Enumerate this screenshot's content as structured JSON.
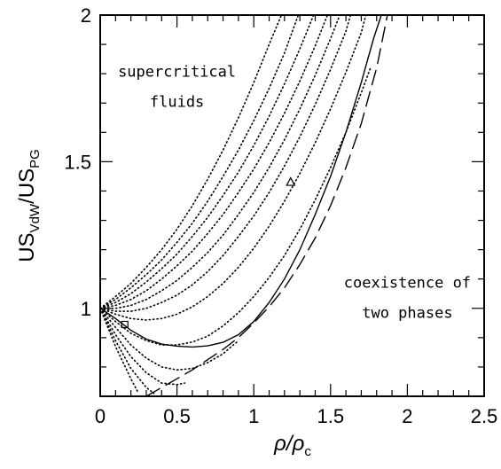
{
  "chart_data": {
    "type": "line",
    "title": "",
    "xlabel": {
      "base": "ρ/ρ",
      "sub": "c"
    },
    "ylabel": {
      "parts": [
        {
          "t": "US",
          "sub": "VdW"
        },
        {
          "t": "/US",
          "sub": "PG"
        }
      ]
    },
    "xlim": [
      0,
      2.5
    ],
    "ylim": [
      0.7,
      2.0
    ],
    "x_ticks": [
      0,
      0.5,
      1,
      1.5,
      2,
      2.5
    ],
    "x_tick_labels": [
      "0",
      "0.5",
      "1",
      "1.5",
      "2",
      "2.5"
    ],
    "y_ticks": [
      1,
      1.5,
      2
    ],
    "y_tick_labels": [
      "1",
      "1.5",
      "2"
    ],
    "annotations": [
      {
        "line1": "supercritical",
        "line2": "fluids",
        "x": 0.5,
        "y": 1.79
      },
      {
        "line1": "coexistence of",
        "line2": "two phases",
        "x": 2.0,
        "y": 1.07
      }
    ],
    "markers": [
      {
        "shape": "triangle",
        "x": 1.24,
        "y": 1.43
      },
      {
        "shape": "square",
        "x": 0.16,
        "y": 0.945
      }
    ],
    "series": [
      {
        "style": "solid",
        "points": [
          [
            0,
            1.0
          ],
          [
            0.1,
            0.965
          ],
          [
            0.2,
            0.925
          ],
          [
            0.3,
            0.895
          ],
          [
            0.4,
            0.878
          ],
          [
            0.5,
            0.871
          ],
          [
            0.6,
            0.868
          ],
          [
            0.7,
            0.872
          ],
          [
            0.8,
            0.884
          ],
          [
            0.9,
            0.91
          ],
          [
            1.0,
            0.955
          ],
          [
            1.1,
            1.02
          ],
          [
            1.2,
            1.1
          ],
          [
            1.3,
            1.2
          ],
          [
            1.4,
            1.32
          ],
          [
            1.5,
            1.45
          ],
          [
            1.6,
            1.6
          ],
          [
            1.7,
            1.77
          ],
          [
            1.78,
            1.92
          ],
          [
            1.83,
            2.0
          ]
        ]
      },
      {
        "style": "dashed",
        "points": [
          [
            0.3,
            0.7
          ],
          [
            0.4,
            0.73
          ],
          [
            0.5,
            0.76
          ],
          [
            0.6,
            0.79
          ],
          [
            0.7,
            0.825
          ],
          [
            0.8,
            0.86
          ],
          [
            0.9,
            0.9
          ],
          [
            1.0,
            0.95
          ],
          [
            1.1,
            1.005
          ],
          [
            1.2,
            1.07
          ],
          [
            1.3,
            1.15
          ],
          [
            1.4,
            1.24
          ],
          [
            1.5,
            1.35
          ],
          [
            1.6,
            1.48
          ],
          [
            1.7,
            1.63
          ],
          [
            1.8,
            1.82
          ],
          [
            1.87,
            2.0
          ]
        ]
      },
      {
        "style": "dotted",
        "points": [
          [
            0,
            1.0
          ],
          [
            0.1,
            1.04
          ],
          [
            0.2,
            1.085
          ],
          [
            0.3,
            1.14
          ],
          [
            0.4,
            1.2
          ],
          [
            0.5,
            1.27
          ],
          [
            0.6,
            1.35
          ],
          [
            0.7,
            1.44
          ],
          [
            0.8,
            1.54
          ],
          [
            0.9,
            1.65
          ],
          [
            1.0,
            1.77
          ],
          [
            1.1,
            1.9
          ],
          [
            1.18,
            2.0
          ]
        ]
      },
      {
        "style": "dotted",
        "points": [
          [
            0,
            1.0
          ],
          [
            0.1,
            1.03
          ],
          [
            0.2,
            1.07
          ],
          [
            0.3,
            1.115
          ],
          [
            0.4,
            1.165
          ],
          [
            0.5,
            1.225
          ],
          [
            0.6,
            1.29
          ],
          [
            0.7,
            1.365
          ],
          [
            0.8,
            1.45
          ],
          [
            0.9,
            1.54
          ],
          [
            1.0,
            1.64
          ],
          [
            1.1,
            1.75
          ],
          [
            1.2,
            1.87
          ],
          [
            1.29,
            2.0
          ]
        ]
      },
      {
        "style": "dotted",
        "points": [
          [
            0,
            1.0
          ],
          [
            0.1,
            1.02
          ],
          [
            0.2,
            1.05
          ],
          [
            0.3,
            1.09
          ],
          [
            0.4,
            1.135
          ],
          [
            0.5,
            1.185
          ],
          [
            0.6,
            1.245
          ],
          [
            0.7,
            1.31
          ],
          [
            0.8,
            1.385
          ],
          [
            0.9,
            1.465
          ],
          [
            1.0,
            1.555
          ],
          [
            1.1,
            1.655
          ],
          [
            1.2,
            1.765
          ],
          [
            1.3,
            1.885
          ],
          [
            1.39,
            2.0
          ]
        ]
      },
      {
        "style": "dotted",
        "points": [
          [
            0,
            1.0
          ],
          [
            0.1,
            1.01
          ],
          [
            0.2,
            1.03
          ],
          [
            0.3,
            1.06
          ],
          [
            0.4,
            1.1
          ],
          [
            0.5,
            1.145
          ],
          [
            0.6,
            1.195
          ],
          [
            0.7,
            1.255
          ],
          [
            0.8,
            1.32
          ],
          [
            0.9,
            1.395
          ],
          [
            1.0,
            1.475
          ],
          [
            1.1,
            1.565
          ],
          [
            1.2,
            1.665
          ],
          [
            1.3,
            1.775
          ],
          [
            1.4,
            1.895
          ],
          [
            1.48,
            2.0
          ]
        ]
      },
      {
        "style": "dotted",
        "points": [
          [
            0,
            1.0
          ],
          [
            0.1,
            1.0
          ],
          [
            0.2,
            1.01
          ],
          [
            0.3,
            1.03
          ],
          [
            0.4,
            1.06
          ],
          [
            0.5,
            1.095
          ],
          [
            0.6,
            1.14
          ],
          [
            0.7,
            1.19
          ],
          [
            0.8,
            1.25
          ],
          [
            0.9,
            1.32
          ],
          [
            1.0,
            1.395
          ],
          [
            1.1,
            1.48
          ],
          [
            1.2,
            1.575
          ],
          [
            1.3,
            1.68
          ],
          [
            1.4,
            1.795
          ],
          [
            1.5,
            1.92
          ],
          [
            1.56,
            2.0
          ]
        ]
      },
      {
        "style": "dotted",
        "points": [
          [
            0,
            1.0
          ],
          [
            0.1,
            0.99
          ],
          [
            0.2,
            0.99
          ],
          [
            0.3,
            1.0
          ],
          [
            0.4,
            1.02
          ],
          [
            0.5,
            1.045
          ],
          [
            0.6,
            1.08
          ],
          [
            0.7,
            1.125
          ],
          [
            0.8,
            1.18
          ],
          [
            0.9,
            1.245
          ],
          [
            1.0,
            1.315
          ],
          [
            1.1,
            1.395
          ],
          [
            1.2,
            1.485
          ],
          [
            1.3,
            1.585
          ],
          [
            1.4,
            1.695
          ],
          [
            1.5,
            1.815
          ],
          [
            1.6,
            1.945
          ],
          [
            1.63,
            2.0
          ]
        ]
      },
      {
        "style": "dotted",
        "points": [
          [
            0,
            1.0
          ],
          [
            0.1,
            0.98
          ],
          [
            0.2,
            0.965
          ],
          [
            0.3,
            0.96
          ],
          [
            0.4,
            0.965
          ],
          [
            0.5,
            0.98
          ],
          [
            0.6,
            1.005
          ],
          [
            0.7,
            1.04
          ],
          [
            0.8,
            1.085
          ],
          [
            0.9,
            1.14
          ],
          [
            1.0,
            1.205
          ],
          [
            1.1,
            1.28
          ],
          [
            1.2,
            1.365
          ],
          [
            1.3,
            1.46
          ],
          [
            1.4,
            1.565
          ],
          [
            1.5,
            1.68
          ],
          [
            1.6,
            1.805
          ],
          [
            1.7,
            1.94
          ],
          [
            1.73,
            2.0
          ]
        ]
      },
      {
        "style": "dotted",
        "points": [
          [
            0,
            1.0
          ],
          [
            0.1,
            0.955
          ],
          [
            0.2,
            0.915
          ],
          [
            0.3,
            0.89
          ],
          [
            0.4,
            0.875
          ],
          [
            0.5,
            0.875
          ],
          [
            0.6,
            0.885
          ],
          [
            0.7,
            0.905
          ],
          [
            0.8,
            0.94
          ],
          [
            0.9,
            0.985
          ],
          [
            1.0,
            1.04
          ],
          [
            1.1,
            1.105
          ],
          [
            1.2,
            1.18
          ],
          [
            1.3,
            1.27
          ],
          [
            1.4,
            1.37
          ],
          [
            1.5,
            1.48
          ],
          [
            1.6,
            1.6
          ],
          [
            1.7,
            1.735
          ],
          [
            1.76,
            1.82
          ]
        ]
      },
      {
        "style": "dotted",
        "points": [
          [
            0,
            1.0
          ],
          [
            0.1,
            0.935
          ],
          [
            0.2,
            0.875
          ],
          [
            0.3,
            0.83
          ],
          [
            0.4,
            0.8
          ],
          [
            0.5,
            0.79
          ],
          [
            0.6,
            0.795
          ],
          [
            0.7,
            0.815
          ],
          [
            0.8,
            0.845
          ],
          [
            0.9,
            0.89
          ]
        ]
      },
      {
        "style": "dotted",
        "points": [
          [
            0,
            1.0
          ],
          [
            0.1,
            0.91
          ],
          [
            0.2,
            0.835
          ],
          [
            0.3,
            0.78
          ],
          [
            0.4,
            0.745
          ],
          [
            0.5,
            0.74
          ],
          [
            0.55,
            0.745
          ]
        ]
      },
      {
        "style": "dotted",
        "points": [
          [
            0,
            1.0
          ],
          [
            0.1,
            0.89
          ],
          [
            0.2,
            0.795
          ],
          [
            0.3,
            0.73
          ],
          [
            0.35,
            0.71
          ]
        ]
      },
      {
        "style": "dotted",
        "points": [
          [
            0,
            1.0
          ],
          [
            0.1,
            0.87
          ],
          [
            0.2,
            0.76
          ],
          [
            0.25,
            0.71
          ]
        ]
      }
    ]
  }
}
